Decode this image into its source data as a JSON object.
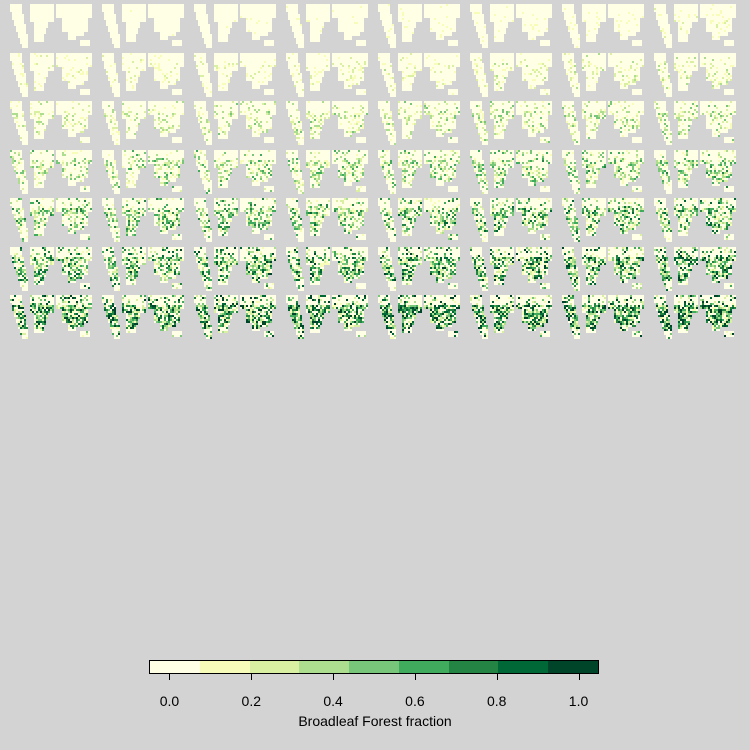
{
  "map_grid": {
    "panel_count": 56,
    "columns": 8,
    "rows": 7,
    "variable": "Broadleaf Forest fraction",
    "background_color": "#d3d3d3",
    "land_base_color": "#ffffcc"
  },
  "legend": {
    "title": "Broadleaf Forest fraction",
    "tick_labels": [
      "0.0",
      "0.2",
      "0.4",
      "0.6",
      "0.8",
      "1.0"
    ],
    "tick_values": [
      0.0,
      0.2,
      0.4,
      0.6,
      0.8,
      1.0
    ],
    "range": [
      -0.05,
      1.05
    ],
    "colors": [
      "#ffffe5",
      "#f7fcb9",
      "#d9f0a3",
      "#addd8e",
      "#78c679",
      "#41ab5d",
      "#238443",
      "#006837",
      "#004529"
    ]
  }
}
